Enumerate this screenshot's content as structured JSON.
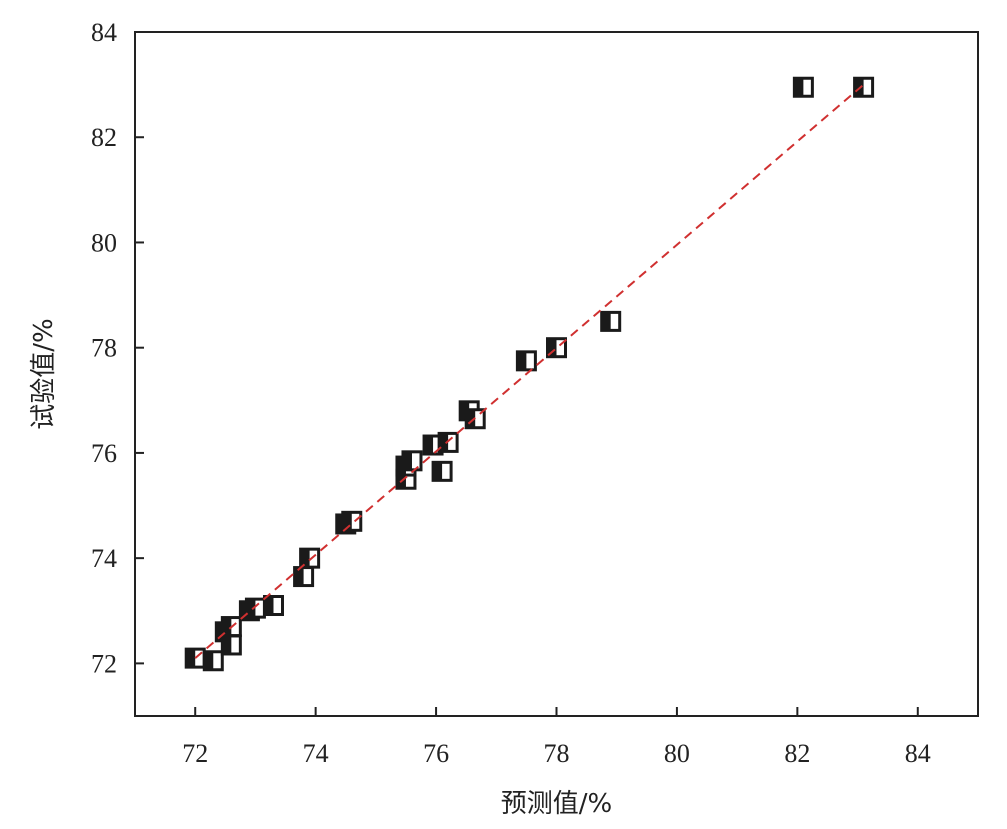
{
  "chart_data": {
    "type": "scatter",
    "title": "",
    "xlabel": "预测值/%",
    "ylabel": "试验值/%",
    "xlim": [
      71,
      85
    ],
    "ylim": [
      71,
      84
    ],
    "xticks": [
      72,
      74,
      76,
      78,
      80,
      82,
      84
    ],
    "yticks": [
      72,
      74,
      76,
      78,
      80,
      82,
      84
    ],
    "grid": false,
    "legend": "none",
    "marker": "half-filled-square",
    "marker_color": "#1a1a1a",
    "reference_line": {
      "style": "dashed",
      "color": "#d03030",
      "from": [
        72.0,
        72.1
      ],
      "to": [
        83.1,
        83.0
      ]
    },
    "points": [
      {
        "x": 72.0,
        "y": 72.1
      },
      {
        "x": 72.3,
        "y": 72.05
      },
      {
        "x": 72.5,
        "y": 72.6
      },
      {
        "x": 72.6,
        "y": 72.35
      },
      {
        "x": 72.6,
        "y": 72.7
      },
      {
        "x": 72.9,
        "y": 73.0
      },
      {
        "x": 73.0,
        "y": 73.05
      },
      {
        "x": 73.3,
        "y": 73.1
      },
      {
        "x": 73.8,
        "y": 73.65
      },
      {
        "x": 73.9,
        "y": 74.0
      },
      {
        "x": 74.5,
        "y": 74.65
      },
      {
        "x": 74.6,
        "y": 74.7
      },
      {
        "x": 75.5,
        "y": 75.5
      },
      {
        "x": 75.5,
        "y": 75.75
      },
      {
        "x": 75.6,
        "y": 75.85
      },
      {
        "x": 75.95,
        "y": 76.15
      },
      {
        "x": 76.2,
        "y": 76.2
      },
      {
        "x": 76.1,
        "y": 75.65
      },
      {
        "x": 76.55,
        "y": 76.8
      },
      {
        "x": 76.65,
        "y": 76.65
      },
      {
        "x": 77.5,
        "y": 77.75
      },
      {
        "x": 78.0,
        "y": 78.0
      },
      {
        "x": 78.9,
        "y": 78.5
      },
      {
        "x": 82.1,
        "y": 82.95
      },
      {
        "x": 83.1,
        "y": 82.95
      }
    ]
  }
}
